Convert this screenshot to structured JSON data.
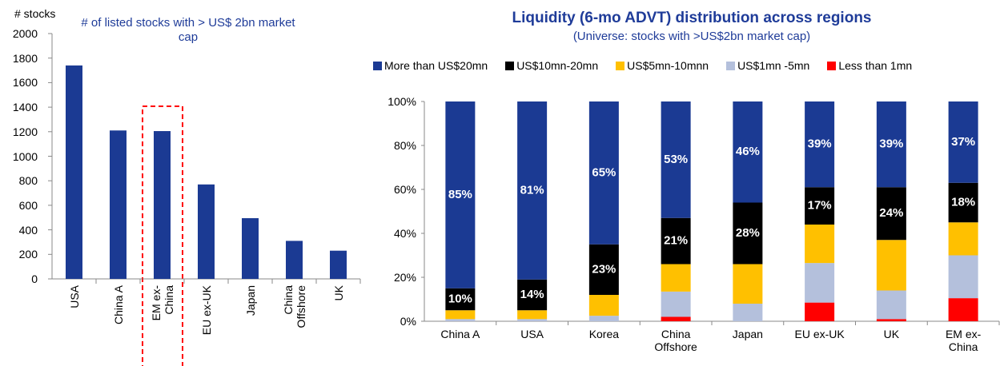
{
  "chart_data": [
    {
      "type": "bar",
      "title": "# of listed stocks with > US$ 2bn market cap",
      "y_label": "# stocks",
      "categories": [
        "USA",
        "China A",
        "EM ex-China",
        "EU ex-UK",
        "Japan",
        "China Offshore",
        "UK"
      ],
      "values": [
        1740,
        1210,
        1205,
        770,
        495,
        310,
        230
      ],
      "color": "#1b3a93",
      "ylim": [
        0,
        2000
      ],
      "yticks": [
        0,
        200,
        400,
        600,
        800,
        1000,
        1200,
        1400,
        1600,
        1800,
        2000
      ]
    },
    {
      "type": "stacked_bar",
      "title": "Liquidity (6-mo ADVT) distribution across regions",
      "subtitle": "(Universe: stocks with >US$2bn market cap)",
      "categories": [
        "China A",
        "USA",
        "Korea",
        "China Offshore",
        "Japan",
        "EU ex-UK",
        "UK",
        "EM ex-China"
      ],
      "series": [
        {
          "name": "More than US$20mn",
          "color": "#1b3a93",
          "values": [
            85,
            81,
            65,
            53,
            46,
            39,
            39,
            37
          ],
          "value_labels": [
            "85%",
            "81%",
            "65%",
            "53%",
            "46%",
            "39%",
            "39%",
            "37%"
          ]
        },
        {
          "name": "US$10mn-20mn",
          "color": "#000000",
          "values": [
            10,
            14,
            23,
            21,
            28,
            17,
            24,
            18
          ],
          "value_labels": [
            "10%",
            "14%",
            "23%",
            "21%",
            "28%",
            "17%",
            "24%",
            "18%"
          ]
        },
        {
          "name": "US$5mn-10mnn",
          "color": "#ffc000",
          "values": [
            4,
            4,
            9.5,
            12.5,
            18,
            17.5,
            23,
            15
          ]
        },
        {
          "name": "US$1mn -5mn",
          "color": "#b4c0dc",
          "values": [
            1,
            1,
            2.5,
            11.5,
            8,
            18,
            13,
            19.5
          ]
        },
        {
          "name": "Less than 1mn",
          "color": "#ff0000",
          "values": [
            0,
            0,
            0,
            2,
            0,
            8.5,
            1,
            10.5
          ]
        }
      ],
      "ylim": [
        0,
        100
      ],
      "yticks": [
        {
          "value": 0,
          "label": "0%"
        },
        {
          "value": 20,
          "label": "20%"
        },
        {
          "value": 40,
          "label": "40%"
        },
        {
          "value": 60,
          "label": "60%"
        },
        {
          "value": 80,
          "label": "80%"
        },
        {
          "value": 100,
          "label": "100%"
        }
      ],
      "legend": "top"
    }
  ]
}
